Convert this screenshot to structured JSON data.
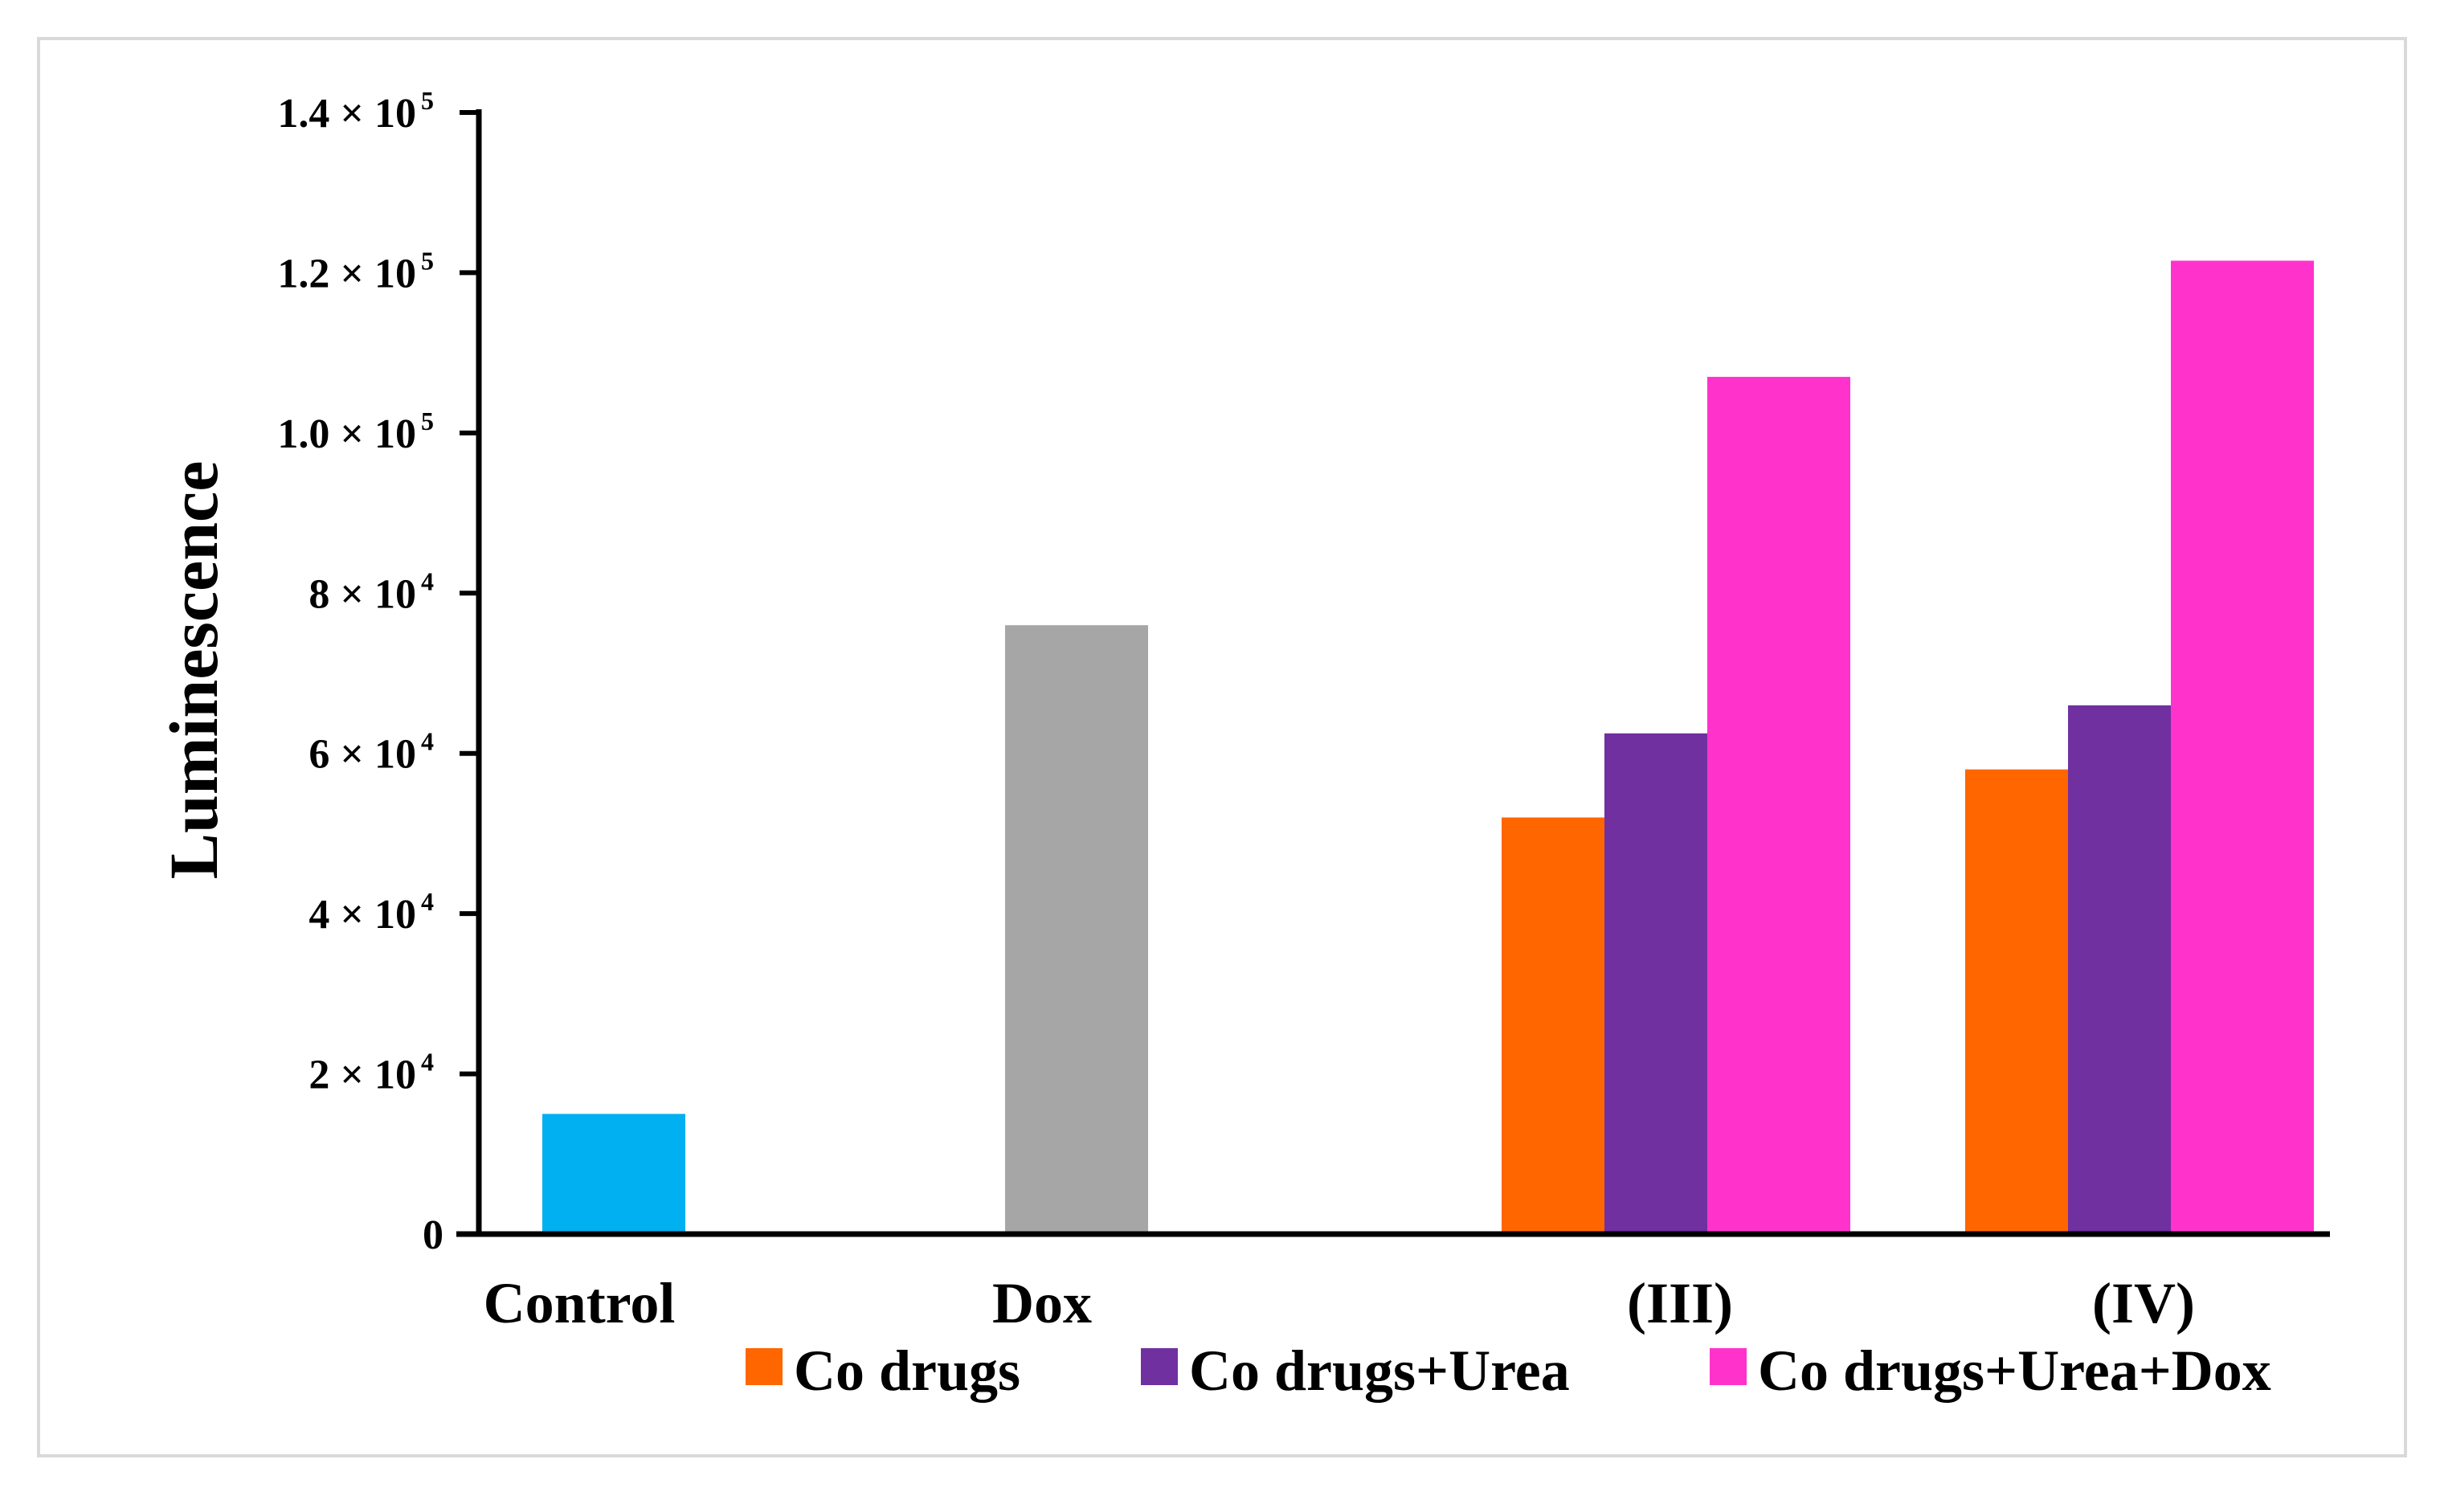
{
  "chart_data": {
    "type": "bar",
    "title": "",
    "xlabel": "",
    "ylabel": "Luminescence",
    "ylim": [
      0,
      140000
    ],
    "grid": false,
    "legend_position": "bottom-right",
    "y_ticks": [
      {
        "value": 0,
        "mantissa": "0",
        "exponent": ""
      },
      {
        "value": 20000,
        "mantissa": "2 × 10",
        "exponent": "4"
      },
      {
        "value": 40000,
        "mantissa": "4 × 10",
        "exponent": "4"
      },
      {
        "value": 60000,
        "mantissa": "6 × 10",
        "exponent": "4"
      },
      {
        "value": 80000,
        "mantissa": "8 × 10",
        "exponent": "4"
      },
      {
        "value": 100000,
        "mantissa": "1.0 × 10",
        "exponent": "5"
      },
      {
        "value": 120000,
        "mantissa": "1.2 × 10",
        "exponent": "5"
      },
      {
        "value": 140000,
        "mantissa": "1.4 × 10",
        "exponent": "5"
      }
    ],
    "categories": [
      "Control",
      "Dox",
      "(III)",
      "(IV)"
    ],
    "single_bars": [
      {
        "category": "Control",
        "value": 15000,
        "color": "#00b0f0"
      },
      {
        "category": "Dox",
        "value": 76000,
        "color": "#a6a6a6"
      }
    ],
    "series": [
      {
        "name": "Co drugs",
        "color": "#ff6600",
        "values": {
          "(III)": 52000,
          "(IV)": 58000
        }
      },
      {
        "name": "Co drugs+Urea",
        "color": "#7030a0",
        "values": {
          "(III)": 62500,
          "(IV)": 66000
        }
      },
      {
        "name": "Co drugs+Urea+Dox",
        "color": "#ff33cc",
        "values": {
          "(III)": 107000,
          "(IV)": 121500
        }
      }
    ]
  }
}
